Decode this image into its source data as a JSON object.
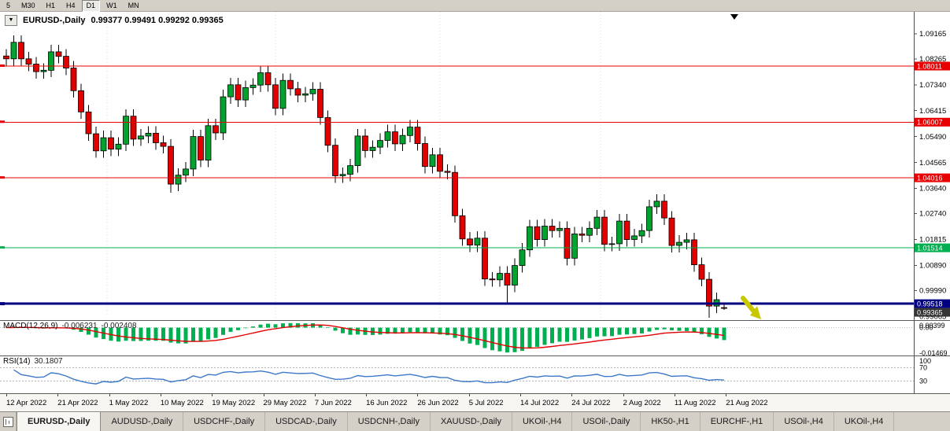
{
  "toolbar": {
    "timeframe_buttons": [
      "5",
      "M30",
      "H1",
      "H4",
      "D1",
      "W1",
      "MN"
    ],
    "active_timeframe": "D1"
  },
  "chart": {
    "title_symbol": "EURUSD-,Daily",
    "title_quotes": "0.99377 0.99491 0.99292 0.99365",
    "object_button": "▼",
    "y_axis_labels": [
      "1.09165",
      "1.08265",
      "1.07340",
      "1.06415",
      "1.05490",
      "1.04565",
      "1.03640",
      "1.02740",
      "1.01815",
      "1.00890",
      "0.99990",
      "0.99065"
    ],
    "hlines": [
      {
        "price": "1.08011",
        "color": "#e80000",
        "width": 1
      },
      {
        "price": "1.06007",
        "color": "#e80000",
        "width": 1
      },
      {
        "price": "1.04016",
        "color": "#e80000",
        "width": 1
      },
      {
        "price": "1.01514",
        "color": "#00b050",
        "width": 1
      },
      {
        "price": "0.99518",
        "color": "#000080",
        "width": 3
      }
    ],
    "current_price": "0.99365",
    "current_price_badge_color": "#333333",
    "up_color": "#00a32e",
    "down_color": "#e00000"
  },
  "chart_data": {
    "type": "candlestick",
    "symbol": "EURUSD-",
    "timeframe": "Daily",
    "ohlc_quote": {
      "open": "0.99377",
      "high": "0.99491",
      "low": "0.99292",
      "close": "0.99365"
    },
    "y_range_top": 1.0995,
    "y_range_bottom": 0.9893,
    "x_labels": [
      "12 Apr 2022",
      "21 Apr 2022",
      "1 May 2022",
      "10 May 2022",
      "19 May 2022",
      "29 May 2022",
      "7 Jun 2022",
      "16 Jun 2022",
      "26 Jun 2022",
      "5 Jul 2022",
      "14 Jul 2022",
      "24 Jul 2022",
      "2 Aug 2022",
      "11 Aug 2022",
      "21 Aug 2022"
    ],
    "candles": [
      [
        1.0837,
        1.0862,
        1.0802,
        1.0827
      ],
      [
        1.0827,
        1.0911,
        1.0802,
        1.0886
      ],
      [
        1.0886,
        1.0911,
        1.0802,
        1.0827
      ],
      [
        1.0827,
        1.0852,
        1.0783,
        1.0808
      ],
      [
        1.0808,
        1.0833,
        1.0756,
        1.0781
      ],
      [
        1.0781,
        1.0811,
        1.0756,
        1.0786
      ],
      [
        1.0786,
        1.0877,
        1.0761,
        1.0852
      ],
      [
        1.0852,
        1.0877,
        1.0811,
        1.0836
      ],
      [
        1.0836,
        1.0861,
        1.0769,
        1.0794
      ],
      [
        1.0794,
        1.0819,
        1.0688,
        1.0713
      ],
      [
        1.0713,
        1.0738,
        1.0612,
        1.0637
      ],
      [
        1.0637,
        1.0662,
        1.0534,
        1.0559
      ],
      [
        1.0559,
        1.0584,
        1.0473,
        1.0498
      ],
      [
        1.0498,
        1.057,
        1.0473,
        1.0545
      ],
      [
        1.0545,
        1.057,
        1.0479,
        1.0504
      ],
      [
        1.0504,
        1.0547,
        1.0479,
        1.0522
      ],
      [
        1.0522,
        1.0647,
        1.0497,
        1.0622
      ],
      [
        1.0622,
        1.0647,
        1.0515,
        1.054
      ],
      [
        1.054,
        1.0576,
        1.0515,
        1.0551
      ],
      [
        1.0551,
        1.0586,
        1.0526,
        1.0561
      ],
      [
        1.0561,
        1.0586,
        1.0502,
        1.0527
      ],
      [
        1.0527,
        1.0552,
        1.0489,
        1.0514
      ],
      [
        1.0514,
        1.0539,
        1.0349,
        1.0379
      ],
      [
        1.0379,
        1.0436,
        1.0354,
        1.0411
      ],
      [
        1.0411,
        1.0458,
        1.0386,
        1.0433
      ],
      [
        1.0433,
        1.0574,
        1.0408,
        1.0549
      ],
      [
        1.0549,
        1.0574,
        1.044,
        1.0465
      ],
      [
        1.0465,
        1.0613,
        1.044,
        1.0588
      ],
      [
        1.0588,
        1.0613,
        1.0537,
        1.0562
      ],
      [
        1.0562,
        1.0716,
        1.0537,
        1.0691
      ],
      [
        1.0691,
        1.0759,
        1.0666,
        1.0734
      ],
      [
        1.0734,
        1.0759,
        1.0655,
        1.068
      ],
      [
        1.068,
        1.0749,
        1.0655,
        1.0724
      ],
      [
        1.0724,
        1.0758,
        1.0699,
        1.0733
      ],
      [
        1.0733,
        1.0802,
        1.0708,
        1.0777
      ],
      [
        1.0777,
        1.0802,
        1.0709,
        1.0734
      ],
      [
        1.0734,
        1.0759,
        1.0625,
        1.065
      ],
      [
        1.065,
        1.0775,
        1.0625,
        1.075
      ],
      [
        1.075,
        1.0775,
        1.0695,
        1.072
      ],
      [
        1.072,
        1.0745,
        1.0672,
        1.0697
      ],
      [
        1.0697,
        1.0727,
        1.0672,
        1.0702
      ],
      [
        1.0702,
        1.0743,
        1.0677,
        1.0718
      ],
      [
        1.0718,
        1.0743,
        1.0592,
        1.0617
      ],
      [
        1.0617,
        1.0642,
        1.0493,
        1.0518
      ],
      [
        1.0518,
        1.0543,
        1.0384,
        1.0409
      ],
      [
        1.0409,
        1.0439,
        1.0384,
        1.0414
      ],
      [
        1.0414,
        1.047,
        1.0389,
        1.0445
      ],
      [
        1.0445,
        1.0576,
        1.042,
        1.0551
      ],
      [
        1.0551,
        1.0576,
        1.0474,
        1.0499
      ],
      [
        1.0499,
        1.0536,
        1.0474,
        1.0511
      ],
      [
        1.0511,
        1.056,
        1.0486,
        1.0535
      ],
      [
        1.0535,
        1.0591,
        1.051,
        1.0566
      ],
      [
        1.0566,
        1.0591,
        1.0498,
        1.0523
      ],
      [
        1.0523,
        1.0578,
        1.0498,
        1.0553
      ],
      [
        1.0553,
        1.0608,
        1.0528,
        1.0583
      ],
      [
        1.0583,
        1.0608,
        1.0499,
        1.0524
      ],
      [
        1.0524,
        1.0549,
        1.0417,
        1.0442
      ],
      [
        1.0442,
        1.0509,
        1.0417,
        1.0484
      ],
      [
        1.0484,
        1.0509,
        1.04,
        1.0425
      ],
      [
        1.0425,
        1.045,
        1.0396,
        1.0421
      ],
      [
        1.0421,
        1.0446,
        1.0241,
        1.0266
      ],
      [
        1.0266,
        1.0291,
        1.0158,
        1.0183
      ],
      [
        1.0183,
        1.0208,
        1.0136,
        1.0161
      ],
      [
        1.0161,
        1.0211,
        1.0136,
        1.0186
      ],
      [
        1.0186,
        1.0211,
        1.0015,
        1.004
      ],
      [
        1.004,
        1.0065,
        1.0012,
        1.0037
      ],
      [
        1.0037,
        1.0085,
        1.0012,
        1.006
      ],
      [
        1.006,
        1.0085,
        0.9952,
        1.0018
      ],
      [
        1.0018,
        1.0113,
        0.9993,
        1.0088
      ],
      [
        1.0088,
        1.0169,
        1.0063,
        1.0144
      ],
      [
        1.0144,
        1.0252,
        1.0119,
        1.0227
      ],
      [
        1.0227,
        1.0252,
        1.0156,
        1.0181
      ],
      [
        1.0181,
        1.0254,
        1.0156,
        1.0229
      ],
      [
        1.0229,
        1.0254,
        1.0188,
        1.0213
      ],
      [
        1.0213,
        1.0246,
        1.0188,
        1.0221
      ],
      [
        1.0221,
        1.0246,
        1.0089,
        1.0114
      ],
      [
        1.0114,
        1.0226,
        1.0089,
        1.0201
      ],
      [
        1.0201,
        1.0226,
        1.0171,
        1.0196
      ],
      [
        1.0196,
        1.0246,
        1.0171,
        1.0221
      ],
      [
        1.0221,
        1.0286,
        1.0196,
        1.0261
      ],
      [
        1.0261,
        1.0286,
        1.0139,
        1.0164
      ],
      [
        1.0164,
        1.0191,
        1.0139,
        1.0166
      ],
      [
        1.0166,
        1.0272,
        1.0141,
        1.0247
      ],
      [
        1.0247,
        1.0272,
        1.0156,
        1.0181
      ],
      [
        1.0181,
        1.0219,
        1.0156,
        1.0194
      ],
      [
        1.0194,
        1.0238,
        1.0169,
        1.0213
      ],
      [
        1.0213,
        1.0323,
        1.0188,
        1.0298
      ],
      [
        1.0298,
        1.0343,
        1.0273,
        1.0318
      ],
      [
        1.0318,
        1.0343,
        1.0233,
        1.0258
      ],
      [
        1.0258,
        1.0283,
        1.0135,
        1.016
      ],
      [
        1.016,
        1.0196,
        1.0135,
        1.0171
      ],
      [
        1.0171,
        1.0205,
        1.0146,
        1.018
      ],
      [
        1.018,
        1.0205,
        1.0066,
        1.0091
      ],
      [
        1.0091,
        1.0116,
        1.0014,
        1.0039
      ],
      [
        1.0039,
        1.0064,
        0.9901,
        0.9943
      ],
      [
        0.9943,
        0.9991,
        0.9918,
        0.9966
      ],
      [
        0.99377,
        0.99491,
        0.99292,
        0.99365
      ]
    ]
  },
  "macd_panel": {
    "name": "MACD(12,26,9)",
    "value_main": "-0.006231",
    "value_signal": "-0.002408",
    "axis_labels": [
      "0.00399",
      "0.00",
      "-0.01469"
    ],
    "histogram_color": "#00b050",
    "signal_color": "#e00000"
  },
  "rsi_panel": {
    "name": "RSI(14)",
    "value": "30.1807",
    "axis_labels": [
      "100",
      "70",
      "30"
    ],
    "levels": [
      70,
      30
    ],
    "line_color": "#3c78c8"
  },
  "annotations": {
    "arrow_color": "#c8c800",
    "top_marker_color": "#000000"
  },
  "tabs": {
    "active_index": 0,
    "items": [
      "EURUSD-,Daily",
      "AUDUSD-,Daily",
      "USDCHF-,Daily",
      "USDCAD-,Daily",
      "USDCNH-,Daily",
      "XAUUSD-,Daily",
      "UKOil-,H4",
      "USOil-,Daily",
      "HK50-,H1",
      "EURCHF-,H1",
      "USOil-,H4",
      "UKOil-,H4"
    ]
  }
}
